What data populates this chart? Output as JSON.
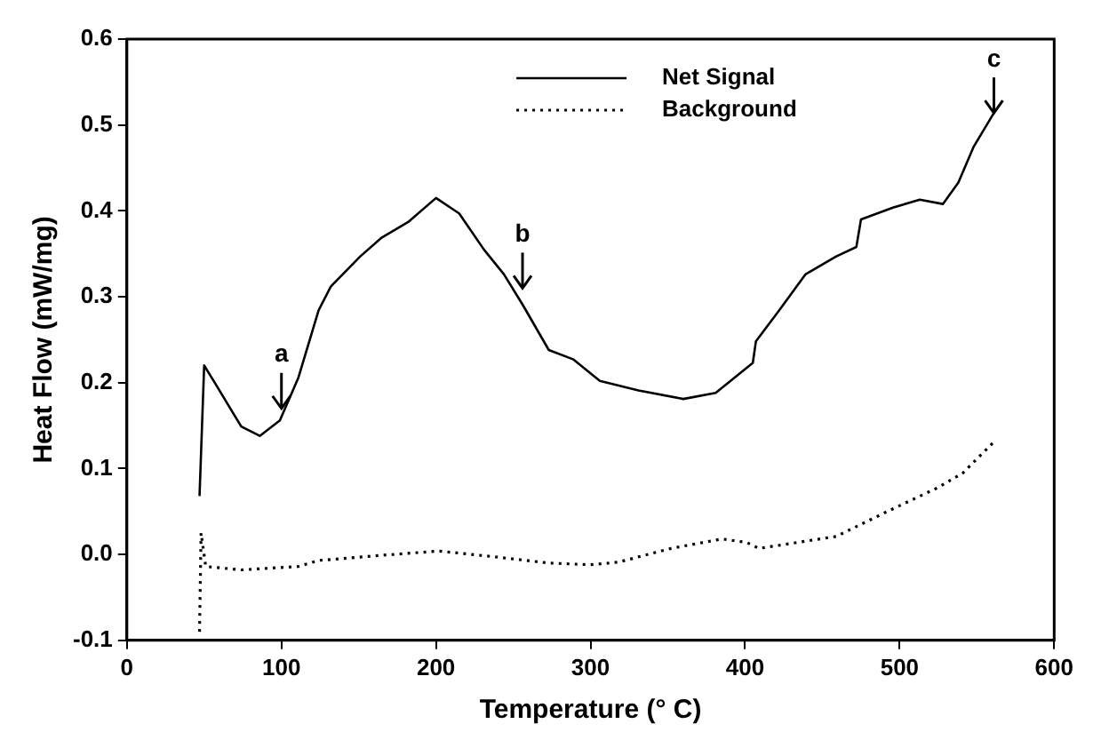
{
  "chart_data": {
    "type": "line",
    "xlabel": "Temperature (° C)",
    "ylabel": "Heat Flow (mW/mg)",
    "xlim": [
      0,
      600
    ],
    "xticks": [
      0,
      100,
      200,
      300,
      400,
      500,
      600
    ],
    "ylim": [
      -0.1,
      0.6
    ],
    "yticks": [
      {
        "value": -0.1,
        "label": "-0.1"
      },
      {
        "value": 0,
        "label": "0.0"
      },
      {
        "value": 0.1,
        "label": "0.1"
      },
      {
        "value": 0.2,
        "label": "0.2"
      },
      {
        "value": 0.3,
        "label": "0.3"
      },
      {
        "value": 0.4,
        "label": "0.4"
      },
      {
        "value": 0.5,
        "label": "0.5"
      },
      {
        "value": 0.6,
        "label": "0.6"
      }
    ],
    "grid": false,
    "legend": "top right",
    "marker": "none",
    "series": [
      {
        "name": "Net Signal",
        "color": "#000000",
        "line_style": "solid",
        "x": [
          47,
          50,
          57.5,
          74,
          86,
          99,
          111,
          124,
          132,
          151,
          165,
          182,
          200,
          215,
          231,
          244,
          256,
          273,
          289,
          306,
          331,
          360,
          381,
          405,
          407,
          422,
          439,
          459,
          472,
          475,
          496,
          513,
          528,
          538,
          548,
          561
        ],
        "values": [
          0.068,
          0.22,
          0.198,
          0.149,
          0.138,
          0.156,
          0.206,
          0.284,
          0.312,
          0.347,
          0.369,
          0.387,
          0.415,
          0.397,
          0.355,
          0.326,
          0.291,
          0.238,
          0.227,
          0.202,
          0.191,
          0.181,
          0.188,
          0.223,
          0.248,
          0.284,
          0.326,
          0.347,
          0.358,
          0.39,
          0.404,
          0.413,
          0.408,
          0.433,
          0.475,
          0.514
        ]
      },
      {
        "name": "Background",
        "color": "#000000",
        "line_style": "dotted",
        "x": [
          47,
          48,
          51,
          74,
          111,
          124,
          165,
          202,
          239,
          273,
          300,
          318,
          352,
          385,
          401,
          409,
          434,
          459,
          492,
          525,
          541,
          561
        ],
        "values": [
          -0.09,
          0.025,
          -0.014,
          -0.018,
          -0.014,
          -0.007,
          -0.001,
          0.004,
          -0.003,
          -0.01,
          -0.012,
          -0.009,
          0.007,
          0.018,
          0.014,
          0.007,
          0.014,
          0.021,
          0.05,
          0.078,
          0.095,
          0.131
        ]
      }
    ],
    "annotations": [
      {
        "text": "a",
        "x": 100,
        "y": 0.17
      },
      {
        "text": "b",
        "x": 256,
        "y": 0.31
      },
      {
        "text": "c",
        "x": 561,
        "y": 0.514
      }
    ]
  }
}
